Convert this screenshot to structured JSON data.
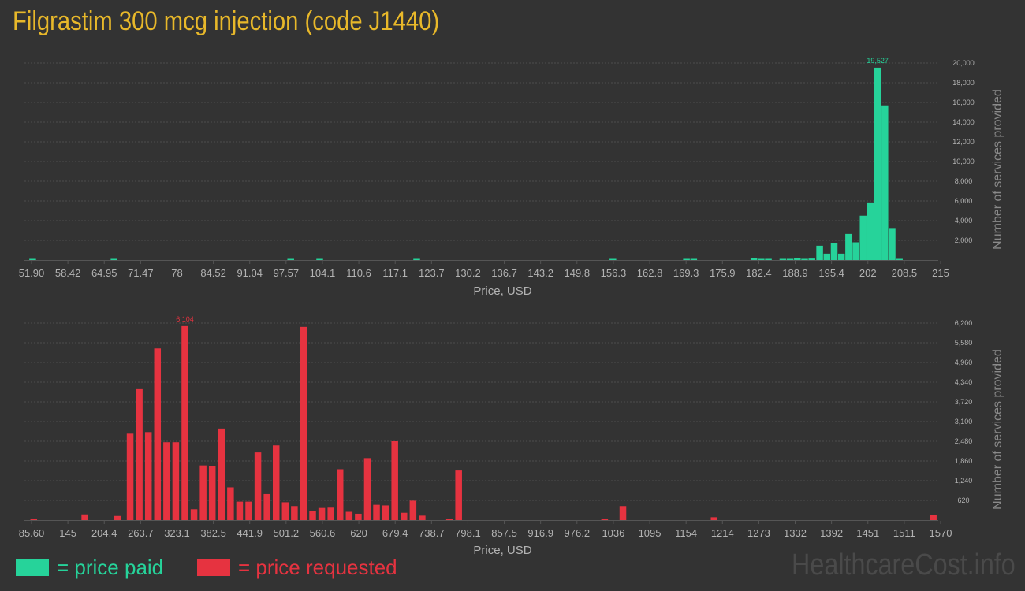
{
  "title": "Filgrastim 300 mcg injection (code J1440)",
  "colors": {
    "paid": "#26d39a",
    "requested": "#e63340",
    "title": "#e8b82a"
  },
  "legend": {
    "paid": "= price paid",
    "requested": "= price requested"
  },
  "brand": "HealthcareCost.info",
  "chart_data": [
    {
      "type": "bar",
      "series_name": "price paid",
      "xlabel": "Price, USD",
      "ylabel": "Number of services provided",
      "x_range": [
        51.9,
        215
      ],
      "ylim": [
        0,
        20000
      ],
      "y_ticks": [
        2000,
        4000,
        6000,
        8000,
        10000,
        12000,
        14000,
        16000,
        18000,
        20000
      ],
      "y_tick_labels": [
        "2,000",
        "4,000",
        "6,000",
        "8,000",
        "10,000",
        "12,000",
        "14,000",
        "16,000",
        "18,000",
        "20,000"
      ],
      "x_tick_labels": [
        "51.90",
        "58.42",
        "64.95",
        "71.47",
        "78",
        "84.52",
        "91.04",
        "97.57",
        "104.1",
        "110.6",
        "117.1",
        "123.7",
        "130.2",
        "136.7",
        "143.2",
        "149.8",
        "156.3",
        "162.8",
        "169.3",
        "175.9",
        "182.4",
        "188.9",
        "195.4",
        "202",
        "208.5",
        "215"
      ],
      "peak_label": "19,527",
      "bins": [
        {
          "x": 52.1,
          "v": 60
        },
        {
          "x": 66.7,
          "v": 120
        },
        {
          "x": 98.4,
          "v": 90
        },
        {
          "x": 103.6,
          "v": 50
        },
        {
          "x": 121.0,
          "v": 40
        },
        {
          "x": 156.2,
          "v": 30
        },
        {
          "x": 169.4,
          "v": 40
        },
        {
          "x": 170.7,
          "v": 30
        },
        {
          "x": 181.5,
          "v": 200
        },
        {
          "x": 182.8,
          "v": 80
        },
        {
          "x": 184.1,
          "v": 60
        },
        {
          "x": 186.7,
          "v": 60
        },
        {
          "x": 188.0,
          "v": 120
        },
        {
          "x": 189.3,
          "v": 180
        },
        {
          "x": 190.6,
          "v": 80
        },
        {
          "x": 191.9,
          "v": 150
        },
        {
          "x": 193.3,
          "v": 1450
        },
        {
          "x": 194.6,
          "v": 650
        },
        {
          "x": 195.9,
          "v": 1750
        },
        {
          "x": 197.2,
          "v": 650
        },
        {
          "x": 198.5,
          "v": 2650
        },
        {
          "x": 199.8,
          "v": 1800
        },
        {
          "x": 201.1,
          "v": 4500
        },
        {
          "x": 202.4,
          "v": 5850
        },
        {
          "x": 203.7,
          "v": 19527
        },
        {
          "x": 205.0,
          "v": 15700
        },
        {
          "x": 206.3,
          "v": 3250
        },
        {
          "x": 207.6,
          "v": 100
        }
      ]
    },
    {
      "type": "bar",
      "series_name": "price requested",
      "xlabel": "Price, USD",
      "ylabel": "Number of services provided",
      "x_range": [
        85.6,
        1570
      ],
      "ylim": [
        0,
        6200
      ],
      "y_ticks": [
        620,
        1240,
        1860,
        2480,
        3100,
        3720,
        4340,
        4960,
        5580,
        6200
      ],
      "y_tick_labels": [
        "620",
        "1,240",
        "1,860",
        "2,480",
        "3,100",
        "3,720",
        "4,340",
        "4,960",
        "5,580",
        "6,200"
      ],
      "x_tick_labels": [
        "85.60",
        "145",
        "204.4",
        "263.7",
        "323.1",
        "382.5",
        "441.9",
        "501.2",
        "560.6",
        "620",
        "679.4",
        "738.7",
        "798.1",
        "857.5",
        "916.9",
        "976.2",
        "1036",
        "1095",
        "1154",
        "1214",
        "1273",
        "1332",
        "1392",
        "1451",
        "1511",
        "1570"
      ],
      "peak_label": "6,104",
      "bins": [
        {
          "x": 89.2,
          "v": 50
        },
        {
          "x": 172.6,
          "v": 180
        },
        {
          "x": 225.8,
          "v": 130
        },
        {
          "x": 246.6,
          "v": 2720
        },
        {
          "x": 261.5,
          "v": 4120
        },
        {
          "x": 276.4,
          "v": 2770
        },
        {
          "x": 291.3,
          "v": 5400
        },
        {
          "x": 306.2,
          "v": 2450
        },
        {
          "x": 321.1,
          "v": 2450
        },
        {
          "x": 336.0,
          "v": 6104
        },
        {
          "x": 350.9,
          "v": 340
        },
        {
          "x": 365.8,
          "v": 1720
        },
        {
          "x": 380.7,
          "v": 1700
        },
        {
          "x": 395.6,
          "v": 2880
        },
        {
          "x": 410.5,
          "v": 1030
        },
        {
          "x": 425.4,
          "v": 580
        },
        {
          "x": 440.3,
          "v": 580
        },
        {
          "x": 455.2,
          "v": 2130
        },
        {
          "x": 470.1,
          "v": 820
        },
        {
          "x": 485.0,
          "v": 2350
        },
        {
          "x": 499.9,
          "v": 560
        },
        {
          "x": 514.8,
          "v": 440
        },
        {
          "x": 529.7,
          "v": 6080
        },
        {
          "x": 544.6,
          "v": 280
        },
        {
          "x": 559.5,
          "v": 380
        },
        {
          "x": 574.4,
          "v": 390
        },
        {
          "x": 589.3,
          "v": 1600
        },
        {
          "x": 604.2,
          "v": 260
        },
        {
          "x": 619.1,
          "v": 200
        },
        {
          "x": 634.0,
          "v": 1950
        },
        {
          "x": 648.9,
          "v": 480
        },
        {
          "x": 663.8,
          "v": 460
        },
        {
          "x": 678.7,
          "v": 2480
        },
        {
          "x": 693.6,
          "v": 230
        },
        {
          "x": 708.5,
          "v": 610
        },
        {
          "x": 723.4,
          "v": 140
        },
        {
          "x": 768.1,
          "v": 40
        },
        {
          "x": 783.0,
          "v": 1560
        },
        {
          "x": 1021.4,
          "v": 50
        },
        {
          "x": 1051.2,
          "v": 440
        },
        {
          "x": 1200.2,
          "v": 90
        },
        {
          "x": 1558.0,
          "v": 160
        }
      ]
    }
  ]
}
